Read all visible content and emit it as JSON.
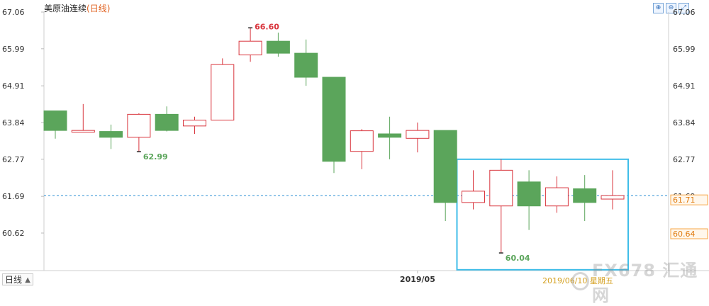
{
  "header": {
    "instrument": "美原油连续",
    "period_suffix": "(日线)"
  },
  "toolbar": [
    {
      "icon": "zoom-in-icon",
      "glyph": "⊕"
    },
    {
      "icon": "zoom-out-icon",
      "glyph": "⊖"
    },
    {
      "icon": "expand-icon",
      "glyph": "⤢"
    }
  ],
  "period_selector": {
    "label": "日线"
  },
  "date_hint": "2019/06/10 星期五",
  "watermark": "FX678 汇通网",
  "colors": {
    "up": "#d9363e",
    "down": "#5ba55b",
    "last_price": "#2b8fd6",
    "highlight_box": "#3fbde8",
    "last_price_tag": "#f7a341"
  },
  "chart_data": {
    "type": "candlestick",
    "title": "美原油连续(日线)",
    "x_tick_labels": [
      "2019/05"
    ],
    "x_tick_at_index": 13,
    "ylim": [
      59.9,
      67.06
    ],
    "y_ticks": [
      67.06,
      65.99,
      64.91,
      63.84,
      62.77,
      61.69,
      60.62
    ],
    "candles": [
      {
        "open": 64.18,
        "high": 64.18,
        "low": 63.37,
        "close": 63.61
      },
      {
        "open": 63.56,
        "high": 64.38,
        "low": 63.56,
        "close": 63.61
      },
      {
        "open": 63.58,
        "high": 63.78,
        "low": 63.07,
        "close": 63.41
      },
      {
        "open": 63.41,
        "high": 64.11,
        "low": 62.99,
        "close": 64.08
      },
      {
        "open": 64.08,
        "high": 64.31,
        "low": 63.58,
        "close": 63.61
      },
      {
        "open": 63.74,
        "high": 64.01,
        "low": 63.51,
        "close": 63.91
      },
      {
        "open": 63.91,
        "high": 65.71,
        "low": 63.91,
        "close": 65.53
      },
      {
        "open": 65.81,
        "high": 66.6,
        "low": 65.61,
        "close": 66.21
      },
      {
        "open": 66.21,
        "high": 66.46,
        "low": 65.76,
        "close": 65.86
      },
      {
        "open": 65.86,
        "high": 66.26,
        "low": 64.91,
        "close": 65.16
      },
      {
        "open": 65.16,
        "high": 65.16,
        "low": 62.37,
        "close": 62.71
      },
      {
        "open": 63.0,
        "high": 63.65,
        "low": 62.48,
        "close": 63.6
      },
      {
        "open": 63.51,
        "high": 64.01,
        "low": 62.77,
        "close": 63.41
      },
      {
        "open": 63.38,
        "high": 63.84,
        "low": 62.97,
        "close": 63.61
      },
      {
        "open": 63.61,
        "high": 63.61,
        "low": 60.97,
        "close": 61.51
      },
      {
        "open": 61.51,
        "high": 62.45,
        "low": 61.31,
        "close": 61.84
      },
      {
        "open": 61.41,
        "high": 62.77,
        "low": 60.04,
        "close": 62.45
      },
      {
        "open": 62.11,
        "high": 62.45,
        "low": 60.71,
        "close": 61.41
      },
      {
        "open": 61.41,
        "high": 62.27,
        "low": 61.21,
        "close": 61.94
      },
      {
        "open": 61.91,
        "high": 62.31,
        "low": 60.97,
        "close": 61.51
      },
      {
        "open": 61.61,
        "high": 62.45,
        "low": 61.31,
        "close": 61.71
      }
    ],
    "annotations": [
      {
        "label": "66.60",
        "candle": 7,
        "at": "high",
        "color": "up"
      },
      {
        "label": "62.99",
        "candle": 3,
        "at": "low",
        "color": "down"
      },
      {
        "label": "60.04",
        "candle": 16,
        "at": "low",
        "color": "down"
      }
    ],
    "last_price": {
      "value": 61.71,
      "label": "61.71"
    },
    "secondary_price": {
      "value": 60.64,
      "label": "60.64"
    },
    "highlight_range": {
      "from_candle": 15,
      "to_candle": 20,
      "low": 59.55,
      "high": 62.77
    }
  }
}
